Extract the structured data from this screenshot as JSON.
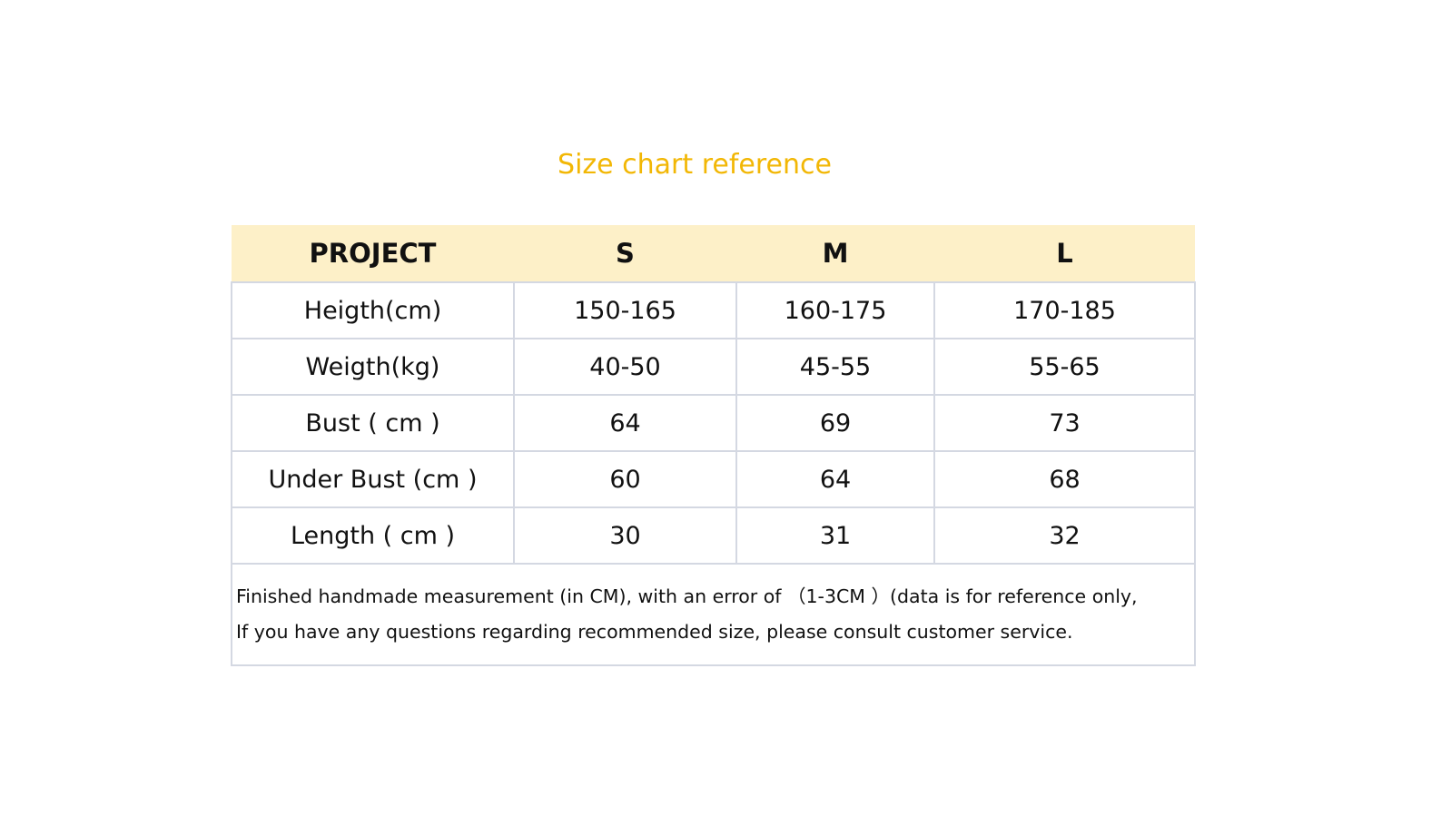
{
  "title": "Size chart reference",
  "table": {
    "headers": [
      "PROJECT",
      "S",
      "M",
      "L"
    ],
    "rows": [
      {
        "label": "Heigth(cm)",
        "values": [
          "150-165",
          "160-175",
          "170-185"
        ]
      },
      {
        "label": "Weigth(kg)",
        "values": [
          "40-50",
          "45-55",
          "55-65"
        ]
      },
      {
        "label": "Bust ( cm )",
        "values": [
          "64",
          "69",
          "73"
        ]
      },
      {
        "label": "Under Bust (cm )",
        "values": [
          "60",
          "64",
          "68"
        ]
      },
      {
        "label": "Length ( cm )",
        "values": [
          "30",
          "31",
          "32"
        ]
      }
    ],
    "note_lines": [
      "Finished handmade measurement (in CM), with an error of （1-3CM ）(data is for reference only,",
      "If you have any questions regarding recommended size, please consult customer service."
    ]
  },
  "colors": {
    "title": "#f2b705",
    "header_bg": "#fdf0c8",
    "border": "#d4d8e2"
  }
}
